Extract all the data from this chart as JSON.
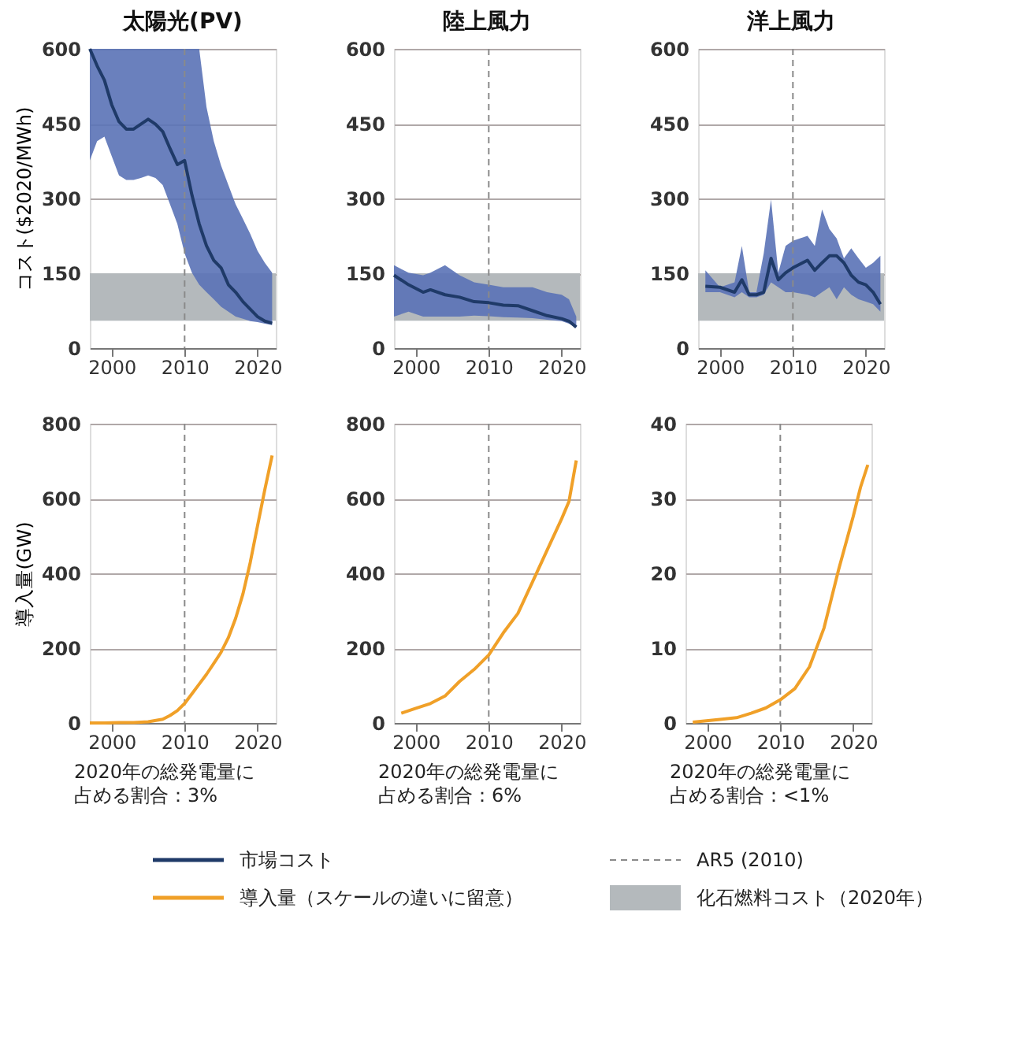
{
  "chart_data": [
    {
      "type": "line",
      "title": "太陽光(PV)",
      "ylabel": "コスト($2020/MWh)",
      "xlim": [
        1997,
        2022.5
      ],
      "xticks": [
        2000,
        2010,
        2020
      ],
      "ylim": [
        0,
        600
      ],
      "yticks": [
        0,
        150,
        300,
        450,
        600
      ],
      "grid": "y",
      "legend": "bottom",
      "series": [
        {
          "name": "市場コスト",
          "color": "#1f3a68",
          "x": [
            1997,
            1998,
            1999,
            2000,
            2001,
            2002,
            2003,
            2004,
            2005,
            2006,
            2007,
            2008,
            2009,
            2010,
            2011,
            2012,
            2013,
            2014,
            2015,
            2016,
            2017,
            2018,
            2019,
            2020,
            2021,
            2022
          ],
          "values": [
            600,
            566,
            537,
            488,
            454,
            439,
            439,
            449,
            459,
            449,
            434,
            400,
            368,
            376,
            307,
            249,
            205,
            176,
            161,
            127,
            112,
            93,
            78,
            63,
            54,
            50
          ],
          "lower": [
            376,
            415,
            424,
            385,
            346,
            337,
            337,
            341,
            346,
            341,
            327,
            288,
            249,
            190,
            151,
            127,
            112,
            98,
            83,
            73,
            63,
            59,
            54,
            52,
            49,
            46
          ],
          "upper": [
            600,
            600,
            600,
            600,
            600,
            600,
            600,
            600,
            600,
            600,
            600,
            600,
            600,
            600,
            600,
            600,
            483,
            415,
            366,
            327,
            288,
            259,
            229,
            195,
            171,
            151
          ]
        }
      ],
      "ref_lines": [
        {
          "axis": "x",
          "value": 2010,
          "label": "AR5 (2010)",
          "color": "#8a8a8a",
          "line_style": "dashed"
        }
      ],
      "bands": [
        {
          "axis": "y",
          "from": 55,
          "to": 150,
          "label": "化石燃料コスト（2020年）",
          "color": "#b4b9bc"
        }
      ]
    },
    {
      "type": "line",
      "title": "陸上風力",
      "xlim": [
        1997,
        2022.5
      ],
      "xticks": [
        2000,
        2010,
        2020
      ],
      "ylim": [
        0,
        600
      ],
      "yticks": [
        0,
        150,
        300,
        450,
        600
      ],
      "grid": "y",
      "series": [
        {
          "color": "#1f3a68",
          "x": [
            1997,
            1999,
            2001,
            2002,
            2004,
            2006,
            2008,
            2010,
            2012,
            2014,
            2016,
            2018,
            2020,
            2021,
            2022
          ],
          "values": [
            146,
            127,
            112,
            117,
            107,
            102,
            93,
            91,
            86,
            85,
            75,
            65,
            59,
            54,
            42
          ],
          "lower": [
            63,
            73,
            63,
            63,
            63,
            63,
            65,
            64,
            62,
            61,
            60,
            57,
            54,
            49,
            42
          ],
          "upper": [
            166,
            151,
            146,
            151,
            166,
            146,
            132,
            127,
            122,
            122,
            122,
            112,
            107,
            98,
            63
          ]
        }
      ],
      "ref_lines": [
        {
          "axis": "x",
          "value": 2010,
          "color": "#8a8a8a",
          "line_style": "dashed"
        }
      ],
      "bands": [
        {
          "axis": "y",
          "from": 55,
          "to": 150,
          "color": "#b4b9bc"
        }
      ]
    },
    {
      "type": "line",
      "title": "洋上風力",
      "xlim": [
        1997,
        2022.5
      ],
      "xticks": [
        2000,
        2010,
        2020
      ],
      "ylim": [
        0,
        600
      ],
      "yticks": [
        0,
        150,
        300,
        450,
        600
      ],
      "grid": "y",
      "series": [
        {
          "color": "#1f3a68",
          "x": [
            1998,
            2000,
            2002,
            2003,
            2004,
            2005,
            2006,
            2007,
            2008,
            2009,
            2010,
            2012,
            2013,
            2014,
            2015,
            2016,
            2017,
            2018,
            2019,
            2020,
            2021,
            2022
          ],
          "values": [
            124,
            122,
            112,
            137,
            107,
            107,
            112,
            180,
            137,
            151,
            161,
            176,
            156,
            171,
            185,
            185,
            171,
            146,
            132,
            127,
            112,
            88
          ],
          "lower": [
            112,
            112,
            102,
            112,
            102,
            102,
            107,
            132,
            122,
            112,
            112,
            107,
            102,
            112,
            122,
            98,
            122,
            107,
            98,
            93,
            88,
            73
          ],
          "upper": [
            156,
            122,
            132,
            205,
            112,
            112,
            190,
            298,
            151,
            205,
            215,
            225,
            205,
            278,
            239,
            220,
            180,
            200,
            180,
            161,
            171,
            185
          ]
        }
      ],
      "ref_lines": [
        {
          "axis": "x",
          "value": 2010,
          "color": "#8a8a8a",
          "line_style": "dashed"
        }
      ],
      "bands": [
        {
          "axis": "y",
          "from": 55,
          "to": 150,
          "color": "#b4b9bc"
        }
      ]
    },
    {
      "type": "line",
      "ylabel": "導入量(GW)",
      "xlim": [
        1997,
        2022.5
      ],
      "xticks": [
        2000,
        2010,
        2020
      ],
      "ylim": [
        0,
        800
      ],
      "yticks": [
        0,
        200,
        400,
        600,
        800
      ],
      "grid": "y",
      "legend": "bottom",
      "annotations": [
        "2020年の総発電量に",
        "占める割合：3%"
      ],
      "series": [
        {
          "name": "導入量（スケールの違いに留意）",
          "color": "#f0a028",
          "x": [
            1997,
            1999,
            2001,
            2003,
            2005,
            2007,
            2008,
            2009,
            2010,
            2011,
            2012,
            2013,
            2014,
            2015,
            2016,
            2017,
            2018,
            2019,
            2020,
            2021,
            2022
          ],
          "values": [
            0,
            0,
            1,
            1,
            3,
            10,
            20,
            33,
            52,
            78,
            104,
            130,
            159,
            189,
            228,
            280,
            345,
            429,
            527,
            624,
            715
          ]
        }
      ],
      "ref_lines": [
        {
          "axis": "x",
          "value": 2010,
          "color": "#8a8a8a",
          "line_style": "dashed"
        }
      ]
    },
    {
      "type": "line",
      "xlim": [
        1997,
        2022.5
      ],
      "xticks": [
        2000,
        2010,
        2020
      ],
      "ylim": [
        0,
        800
      ],
      "yticks": [
        0,
        200,
        400,
        600,
        800
      ],
      "grid": "y",
      "annotations": [
        "2020年の総発電量に",
        "占める割合：6%"
      ],
      "series": [
        {
          "color": "#f0a028",
          "x": [
            1998,
            2000,
            2002,
            2004,
            2006,
            2008,
            2010,
            2012,
            2014,
            2016,
            2018,
            2020,
            2021,
            2022
          ],
          "values": [
            26,
            39,
            52,
            72,
            111,
            143,
            182,
            241,
            293,
            377,
            462,
            546,
            592,
            702
          ]
        }
      ],
      "ref_lines": [
        {
          "axis": "x",
          "value": 2010,
          "color": "#8a8a8a",
          "line_style": "dashed"
        }
      ]
    },
    {
      "type": "line",
      "xlim": [
        1997,
        2022.5
      ],
      "xticks": [
        2000,
        2010,
        2020
      ],
      "ylim": [
        0,
        40
      ],
      "yticks": [
        0,
        10,
        20,
        30,
        40
      ],
      "grid": "y",
      "annotations": [
        "2020年の総発電量に",
        "占める割合：<1%"
      ],
      "series": [
        {
          "color": "#f0a028",
          "x": [
            1998,
            2002,
            2004,
            2006,
            2008,
            2010,
            2012,
            2014,
            2016,
            2018,
            2020,
            2021,
            2022
          ],
          "values": [
            0.1,
            0.5,
            0.7,
            1.3,
            2.0,
            3.1,
            4.6,
            7.5,
            12.7,
            20.5,
            27.6,
            31.5,
            34.5
          ]
        }
      ],
      "ref_lines": [
        {
          "axis": "x",
          "value": 2010,
          "color": "#8a8a8a",
          "line_style": "dashed"
        }
      ]
    }
  ]
}
